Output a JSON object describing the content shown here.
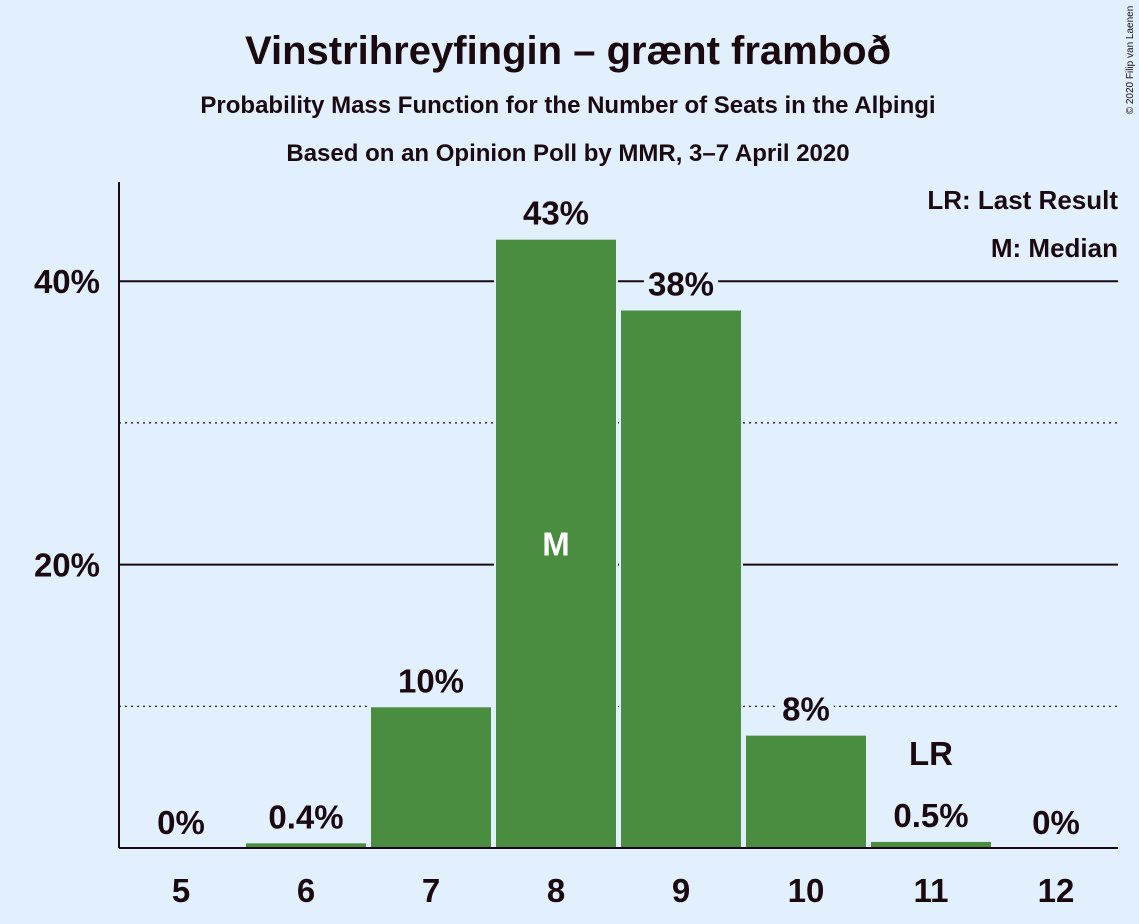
{
  "title": "Vinstrihreyfingin – grænt framboð",
  "subtitle1": "Probability Mass Function for the Number of Seats in the Alþingi",
  "subtitle2": "Based on an Opinion Poll by MMR, 3–7 April 2020",
  "copyright": "© 2020 Filip van Laenen",
  "legend": {
    "lr": "LR: Last Result",
    "median": "M: Median"
  },
  "colors": {
    "bar": "#4a8c40",
    "background": "#e2f0fe",
    "text": "#1a0a10"
  },
  "chart_data": {
    "type": "bar",
    "categories": [
      "5",
      "6",
      "7",
      "8",
      "9",
      "10",
      "11",
      "12"
    ],
    "values": [
      0,
      0.4,
      10,
      43,
      38,
      8,
      0.5,
      0
    ],
    "labels": [
      "0%",
      "0.4%",
      "10%",
      "43%",
      "38%",
      "8%",
      "0.5%",
      "0%"
    ],
    "ylim": [
      0,
      47
    ],
    "yticks": [
      {
        "value": 20,
        "label": "20%"
      },
      {
        "value": 40,
        "label": "40%"
      }
    ],
    "minor_gridlines": [
      10,
      30
    ],
    "median_category": "8",
    "median_marker": "M",
    "last_result_category": "11",
    "last_result_marker": "LR",
    "legend_position": "top-right"
  }
}
